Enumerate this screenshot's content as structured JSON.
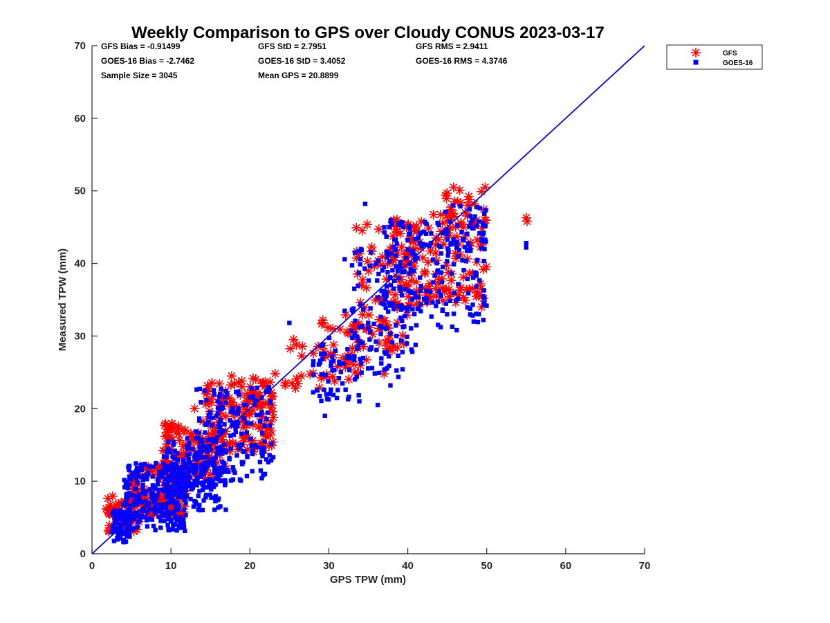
{
  "chart_data": {
    "type": "scatter",
    "title": "Weekly Comparison to GPS over Cloudy CONUS 2023-03-17",
    "xlabel": "GPS TPW (mm)",
    "ylabel": "Measured TPW (mm)",
    "xlim": [
      0,
      70
    ],
    "ylim": [
      0,
      70
    ],
    "xticks": [
      "0",
      "10",
      "20",
      "30",
      "40",
      "50",
      "60",
      "70"
    ],
    "yticks": [
      "0",
      "10",
      "20",
      "30",
      "40",
      "50",
      "60",
      "70"
    ],
    "grid": false,
    "legend_position": "outside top-right",
    "reference_line": {
      "x": [
        0,
        70
      ],
      "y": [
        0,
        70
      ],
      "color": "#0000dd"
    },
    "stats": [
      [
        "GFS Bias = -0.91499",
        "GFS StD = 2.7951",
        "GFS RMS = 2.9411"
      ],
      [
        "GOES-16 Bias = -2.7462",
        "GOES-16 StD = 3.4052",
        "GOES-16 RMS = 4.3746"
      ],
      [
        "Sample Size = 3045",
        "Mean GPS = 20.8899",
        ""
      ]
    ],
    "series": [
      {
        "name": "GFS",
        "marker": "asterisk",
        "color": "#ff0000",
        "clusters": [
          {
            "x": [
              2,
              6
            ],
            "y": [
              3,
              8
            ],
            "n": 60
          },
          {
            "x": [
              5,
              12
            ],
            "y": [
              5,
              12
            ],
            "n": 120
          },
          {
            "x": [
              9,
              17
            ],
            "y": [
              10,
              18
            ],
            "n": 120
          },
          {
            "x": [
              14,
              23
            ],
            "y": [
              14,
              24
            ],
            "n": 110
          },
          {
            "x": [
              17,
              23
            ],
            "y": [
              19,
              24.5
            ],
            "n": 35
          },
          {
            "x": [
              24,
              31
            ],
            "y": [
              22,
              30
            ],
            "n": 20
          },
          {
            "x": [
              29,
              35
            ],
            "y": [
              24,
              33
            ],
            "n": 40
          },
          {
            "x": [
              33,
              40
            ],
            "y": [
              28,
              46
            ],
            "n": 80
          },
          {
            "x": [
              38,
              50
            ],
            "y": [
              34,
              47
            ],
            "n": 140
          },
          {
            "x": [
              44,
              50
            ],
            "y": [
              45,
              51
            ],
            "n": 25
          }
        ],
        "points": [
          [
            55,
            46.3
          ],
          [
            55.1,
            45.8
          ],
          [
            1.8,
            6.2
          ],
          [
            2.2,
            3.9
          ],
          [
            13,
            20
          ],
          [
            45.8,
            50.5
          ],
          [
            49.8,
            50.5
          ],
          [
            23.2,
            24.8
          ],
          [
            26.5,
            24.5
          ],
          [
            37,
            24.8
          ],
          [
            38,
            28
          ]
        ]
      },
      {
        "name": "GOES-16",
        "marker": "square",
        "color": "#0000ff",
        "clusters": [
          {
            "x": [
              2.5,
              5
            ],
            "y": [
              1.5,
              6
            ],
            "n": 70
          },
          {
            "x": [
              4,
              12
            ],
            "y": [
              3,
              12.5
            ],
            "n": 260
          },
          {
            "x": [
              9,
              17
            ],
            "y": [
              6,
              16
            ],
            "n": 230
          },
          {
            "x": [
              13,
              23
            ],
            "y": [
              10,
              23
            ],
            "n": 170
          },
          {
            "x": [
              28,
              34
            ],
            "y": [
              21,
              30
            ],
            "n": 60
          },
          {
            "x": [
              32,
              41
            ],
            "y": [
              24,
              42
            ],
            "n": 120
          },
          {
            "x": [
              37,
              50
            ],
            "y": [
              31,
              46
            ],
            "n": 190
          },
          {
            "x": [
              44,
              50
            ],
            "y": [
              42,
              48
            ],
            "n": 30
          }
        ],
        "points": [
          [
            55,
            42.8
          ],
          [
            55,
            42.2
          ],
          [
            34.6,
            48.2
          ],
          [
            29.5,
            19
          ],
          [
            36.2,
            20.5
          ],
          [
            37.8,
            23.2
          ],
          [
            25,
            31.8
          ],
          [
            28.5,
            22.5
          ],
          [
            46.2,
            30.8
          ],
          [
            49,
            33
          ],
          [
            11,
            3.7
          ]
        ]
      }
    ]
  }
}
